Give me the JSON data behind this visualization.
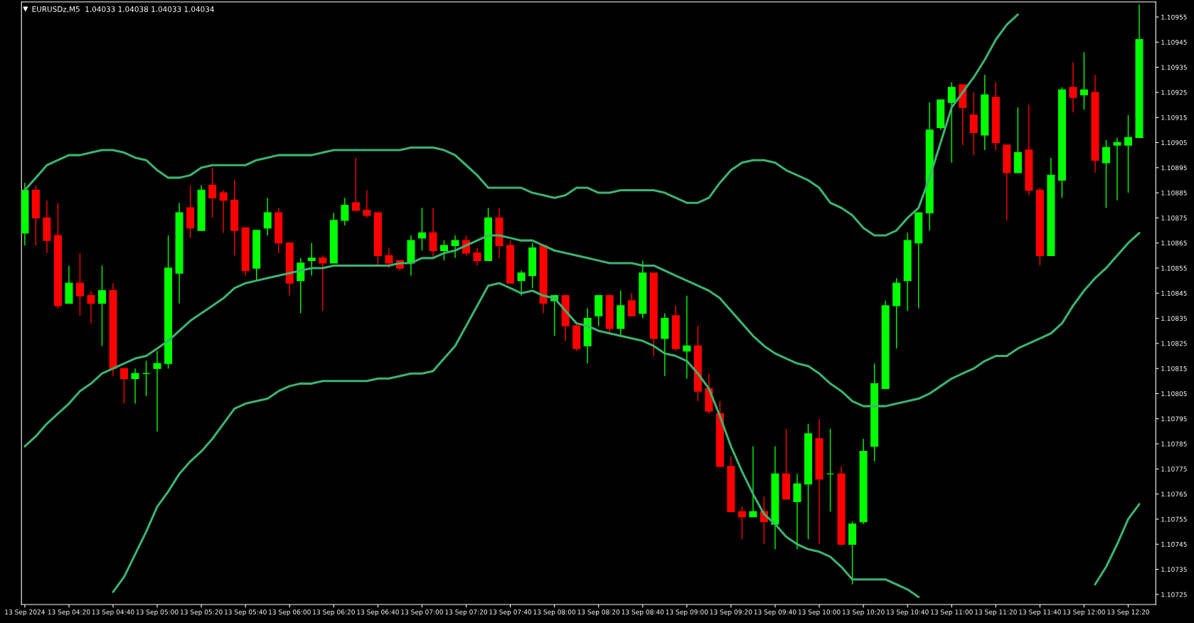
{
  "chart_data": {
    "type": "candlestick",
    "title": "EURUSDz,M5  1.04033 1.04038 1.04033 1.04034",
    "categories": [
      "13 Sep 2024",
      null,
      null,
      null,
      "13 Sep 04:20",
      null,
      null,
      null,
      "13 Sep 04:40",
      null,
      null,
      null,
      "13 Sep 05:00",
      null,
      null,
      null,
      "13 Sep 05:20",
      null,
      null,
      null,
      "13 Sep 05:40",
      null,
      null,
      null,
      "13 Sep 06:00",
      null,
      null,
      null,
      "13 Sep 06:20",
      null,
      null,
      null,
      "13 Sep 06:40",
      null,
      null,
      null,
      "13 Sep 07:00",
      null,
      null,
      null,
      "13 Sep 07:20",
      null,
      null,
      null,
      "13 Sep 07:40",
      null,
      null,
      null,
      "13 Sep 08:00",
      null,
      null,
      null,
      "13 Sep 08:20",
      null,
      null,
      null,
      "13 Sep 08:40",
      null,
      null,
      null,
      "13 Sep 09:00",
      null,
      null,
      null,
      "13 Sep 09:20",
      null,
      null,
      null,
      "13 Sep 09:40",
      null,
      null,
      null,
      "13 Sep 10:00",
      null,
      null,
      null,
      "13 Sep 10:20",
      null,
      null,
      null,
      "13 Sep 10:40",
      null,
      null,
      null,
      "13 Sep 11:00",
      null,
      null,
      null,
      "13 Sep 11:20",
      null,
      null,
      null,
      "13 Sep 11:40",
      null,
      null,
      null,
      "13 Sep 12:00",
      null,
      null,
      null,
      "13 Sep 12:20",
      null
    ],
    "ohlc": [
      [
        1.10869,
        1.10889,
        1.10864,
        1.10886
      ],
      [
        1.10886,
        1.10888,
        1.10864,
        1.10875
      ],
      [
        1.10875,
        1.10882,
        1.10861,
        1.10866
      ],
      [
        1.10868,
        1.10881,
        1.10839,
        1.1084
      ],
      [
        1.10841,
        1.10856,
        1.10841,
        1.10849
      ],
      [
        1.10849,
        1.10861,
        1.10836,
        1.10844
      ],
      [
        1.10844,
        1.10846,
        1.10833,
        1.10841
      ],
      [
        1.10841,
        1.10856,
        1.10824,
        1.10846
      ],
      [
        1.10846,
        1.10849,
        1.10812,
        1.10815
      ],
      [
        1.10815,
        1.10815,
        1.10801,
        1.10811
      ],
      [
        1.10811,
        1.10815,
        1.10801,
        1.10813
      ],
      [
        1.10813,
        1.10818,
        1.10804,
        1.10813
      ],
      [
        1.10815,
        1.10822,
        1.1079,
        1.10817
      ],
      [
        1.10817,
        1.10868,
        1.10815,
        1.10855
      ],
      [
        1.10853,
        1.10881,
        1.10841,
        1.10877
      ],
      [
        1.10879,
        1.10888,
        1.10867,
        1.10871
      ],
      [
        1.1087,
        1.10888,
        1.1087,
        1.10886
      ],
      [
        1.10888,
        1.10895,
        1.10875,
        1.10883
      ],
      [
        1.10885,
        1.10886,
        1.10869,
        1.10882
      ],
      [
        1.10882,
        1.1089,
        1.1086,
        1.1087
      ],
      [
        1.10871,
        1.10871,
        1.10852,
        1.10854
      ],
      [
        1.10855,
        1.1087,
        1.1085,
        1.1087
      ],
      [
        1.10871,
        1.10883,
        1.10868,
        1.10877
      ],
      [
        1.10877,
        1.10879,
        1.10861,
        1.10865
      ],
      [
        1.10865,
        1.10865,
        1.10844,
        1.10849
      ],
      [
        1.1085,
        1.10859,
        1.10837,
        1.10857
      ],
      [
        1.10858,
        1.10865,
        1.10852,
        1.10859
      ],
      [
        1.10859,
        1.1086,
        1.10838,
        1.10857
      ],
      [
        1.10857,
        1.10877,
        1.10857,
        1.10874
      ],
      [
        1.10874,
        1.10883,
        1.10872,
        1.1088
      ],
      [
        1.10881,
        1.10899,
        1.10878,
        1.10878
      ],
      [
        1.10878,
        1.10886,
        1.10875,
        1.10876
      ],
      [
        1.10877,
        1.10877,
        1.10856,
        1.1086
      ],
      [
        1.1086,
        1.10863,
        1.10855,
        1.10857
      ],
      [
        1.10858,
        1.10858,
        1.10854,
        1.10855
      ],
      [
        1.10857,
        1.10868,
        1.10852,
        1.10866
      ],
      [
        1.10867,
        1.10879,
        1.10862,
        1.10869
      ],
      [
        1.10869,
        1.10879,
        1.10859,
        1.10862
      ],
      [
        1.10862,
        1.10866,
        1.10858,
        1.10864
      ],
      [
        1.10864,
        1.10868,
        1.10859,
        1.10866
      ],
      [
        1.10866,
        1.10868,
        1.1086,
        1.10861
      ],
      [
        1.10861,
        1.10863,
        1.10856,
        1.10858
      ],
      [
        1.10858,
        1.10879,
        1.10858,
        1.10875
      ],
      [
        1.10875,
        1.10879,
        1.10859,
        1.10864
      ],
      [
        1.10864,
        1.10866,
        1.10849,
        1.10849
      ],
      [
        1.1085,
        1.10854,
        1.10844,
        1.10853
      ],
      [
        1.10852,
        1.10865,
        1.10847,
        1.10863
      ],
      [
        1.10864,
        1.10864,
        1.10837,
        1.10841
      ],
      [
        1.10842,
        1.10844,
        1.10828,
        1.10844
      ],
      [
        1.10844,
        1.10844,
        1.10826,
        1.10832
      ],
      [
        1.10832,
        1.10833,
        1.10822,
        1.10823
      ],
      [
        1.10824,
        1.10839,
        1.10817,
        1.10835
      ],
      [
        1.10836,
        1.10844,
        1.10832,
        1.10844
      ],
      [
        1.10844,
        1.10844,
        1.10829,
        1.10831
      ],
      [
        1.10831,
        1.10846,
        1.10828,
        1.1084
      ],
      [
        1.10842,
        1.10845,
        1.10836,
        1.10836
      ],
      [
        1.10837,
        1.10858,
        1.10835,
        1.10853
      ],
      [
        1.10853,
        1.10853,
        1.1082,
        1.10827
      ],
      [
        1.10827,
        1.10837,
        1.10812,
        1.10835
      ],
      [
        1.10836,
        1.1084,
        1.10822,
        1.10823
      ],
      [
        1.10822,
        1.10844,
        1.10811,
        1.10824
      ],
      [
        1.10824,
        1.10832,
        1.10802,
        1.10806
      ],
      [
        1.10807,
        1.10813,
        1.10797,
        1.10798
      ],
      [
        1.10797,
        1.10802,
        1.10776,
        1.10776
      ],
      [
        1.10776,
        1.1078,
        1.10758,
        1.10758
      ],
      [
        1.10758,
        1.1076,
        1.10747,
        1.10756
      ],
      [
        1.10756,
        1.10784,
        1.10756,
        1.10758
      ],
      [
        1.10758,
        1.10764,
        1.10745,
        1.10754
      ],
      [
        1.10753,
        1.10784,
        1.10743,
        1.10773
      ],
      [
        1.10773,
        1.10791,
        1.10763,
        1.10763
      ],
      [
        1.10762,
        1.10773,
        1.10743,
        1.10769
      ],
      [
        1.10769,
        1.10793,
        1.10747,
        1.10789
      ],
      [
        1.10787,
        1.10795,
        1.10745,
        1.10771
      ],
      [
        1.10773,
        1.10791,
        1.10758,
        1.10773
      ],
      [
        1.10773,
        1.10776,
        1.10745,
        1.10745
      ],
      [
        1.10745,
        1.10754,
        1.10729,
        1.10753
      ],
      [
        1.10754,
        1.10787,
        1.10753,
        1.10782
      ],
      [
        1.10784,
        1.10817,
        1.10778,
        1.10809
      ],
      [
        1.10807,
        1.10842,
        1.10807,
        1.1084
      ],
      [
        1.1084,
        1.10851,
        1.10823,
        1.10849
      ],
      [
        1.1085,
        1.10869,
        1.10838,
        1.10866
      ],
      [
        1.10865,
        1.10877,
        1.10839,
        1.10877
      ],
      [
        1.10877,
        1.10921,
        1.1087,
        1.1091
      ],
      [
        1.10911,
        1.10922,
        1.1091,
        1.10922
      ],
      [
        1.10921,
        1.10929,
        1.10897,
        1.10927
      ],
      [
        1.10928,
        1.10928,
        1.10904,
        1.10919
      ],
      [
        1.10916,
        1.10925,
        1.109,
        1.10909
      ],
      [
        1.10908,
        1.10932,
        1.10902,
        1.10924
      ],
      [
        1.10923,
        1.10929,
        1.10902,
        1.10905
      ],
      [
        1.10904,
        1.10904,
        1.10874,
        1.10893
      ],
      [
        1.10893,
        1.10919,
        1.10893,
        1.10901
      ],
      [
        1.10902,
        1.1092,
        1.10884,
        1.10886
      ],
      [
        1.10886,
        1.10887,
        1.10856,
        1.1086
      ],
      [
        1.1086,
        1.10899,
        1.1086,
        1.10892
      ],
      [
        1.1089,
        1.10927,
        1.10883,
        1.10926
      ],
      [
        1.10927,
        1.10937,
        1.10917,
        1.10923
      ],
      [
        1.10924,
        1.10941,
        1.10918,
        1.10926
      ],
      [
        1.10925,
        1.10932,
        1.10893,
        1.10898
      ],
      [
        1.10897,
        1.10906,
        1.10879,
        1.10903
      ],
      [
        1.10904,
        1.10907,
        1.10882,
        1.10905
      ],
      [
        1.10904,
        1.10916,
        1.10885,
        1.10907
      ],
      [
        1.10907,
        1.1096,
        1.10907,
        1.10946
      ]
    ],
    "colors": [
      "#00ff00",
      "#ff0000",
      "#ff0000",
      "#ff0000",
      "#00ff00",
      "#ff0000",
      "#ff0000",
      "#00ff00",
      "#ff0000",
      "#ff0000",
      "#00ff00",
      "#00ff00",
      "#00ff00",
      "#00ff00",
      "#00ff00",
      "#ff0000",
      "#00ff00",
      "#ff0000",
      "#ff0000",
      "#ff0000",
      "#ff0000",
      "#00ff00",
      "#00ff00",
      "#ff0000",
      "#ff0000",
      "#00ff00",
      "#00ff00",
      "#ff0000",
      "#00ff00",
      "#00ff00",
      "#ff0000",
      "#ff0000",
      "#ff0000",
      "#ff0000",
      "#ff0000",
      "#00ff00",
      "#00ff00",
      "#ff0000",
      "#00ff00",
      "#00ff00",
      "#ff0000",
      "#ff0000",
      "#00ff00",
      "#ff0000",
      "#ff0000",
      "#00ff00",
      "#00ff00",
      "#ff0000",
      "#00ff00",
      "#ff0000",
      "#ff0000",
      "#00ff00",
      "#00ff00",
      "#ff0000",
      "#00ff00",
      "#ff0000",
      "#00ff00",
      "#ff0000",
      "#00ff00",
      "#ff0000",
      "#00ff00",
      "#ff0000",
      "#ff0000",
      "#ff0000",
      "#ff0000",
      "#ff0000",
      "#00ff00",
      "#ff0000",
      "#00ff00",
      "#ff0000",
      "#00ff00",
      "#00ff00",
      "#ff0000",
      "#00ff00",
      "#ff0000",
      "#00ff00",
      "#00ff00",
      "#00ff00",
      "#00ff00",
      "#00ff00",
      "#00ff00",
      "#00ff00",
      "#00ff00",
      "#00ff00",
      "#00ff00",
      "#ff0000",
      "#ff0000",
      "#00ff00",
      "#ff0000",
      "#ff0000",
      "#00ff00",
      "#ff0000",
      "#ff0000",
      "#00ff00",
      "#00ff00",
      "#ff0000",
      "#00ff00",
      "#ff0000",
      "#00ff00",
      "#00ff00",
      "#00ff00",
      "#00ff00"
    ],
    "series": [
      {
        "type": "line",
        "color": "#3cb371",
        "values": [
          1.10886,
          1.10891,
          1.10896,
          1.10898,
          1.109,
          1.109,
          1.10901,
          1.10902,
          1.10902,
          1.10901,
          1.10899,
          1.10898,
          1.10894,
          1.10891,
          1.10891,
          1.10892,
          1.10895,
          1.10896,
          1.10896,
          1.10896,
          1.10896,
          1.10898,
          1.10899,
          1.109,
          1.109,
          1.109,
          1.109,
          1.10901,
          1.10902,
          1.10902,
          1.10902,
          1.10902,
          1.10902,
          1.10902,
          1.10902,
          1.10903,
          1.10903,
          1.10903,
          1.10902,
          1.109,
          1.10896,
          1.10892,
          1.10887,
          1.10887,
          1.10887,
          1.10887,
          1.10885,
          1.10884,
          1.10883,
          1.10884,
          1.10887,
          1.10887,
          1.10885,
          1.10885,
          1.10886,
          1.10886,
          1.10886,
          1.10886,
          1.10885,
          1.10883,
          1.10881,
          1.10881,
          1.10883,
          1.10889,
          1.10894,
          1.10897,
          1.10898,
          1.10898,
          1.10897,
          1.10894,
          1.10892,
          1.1089,
          1.10887,
          1.10881,
          1.10879,
          1.10876,
          1.10871,
          1.10868,
          1.10868,
          1.1087,
          1.10875,
          1.10879,
          1.10891,
          1.10905,
          1.10919,
          1.10925,
          1.10931,
          1.10938,
          1.10946,
          1.10952,
          1.10956,
          null,
          null,
          null,
          null,
          null,
          null,
          null,
          null,
          null,
          null,
          null
        ]
      },
      {
        "type": "line",
        "color": "#3cb371",
        "values": [
          1.10784,
          1.10788,
          1.10793,
          1.10797,
          1.10801,
          1.10806,
          1.10809,
          1.10813,
          1.10815,
          1.10817,
          1.10819,
          1.1082,
          1.10823,
          1.10826,
          1.1083,
          1.10834,
          1.10837,
          1.1084,
          1.10843,
          1.10847,
          1.10849,
          1.1085,
          1.10851,
          1.10852,
          1.10853,
          1.10854,
          1.10855,
          1.10855,
          1.10856,
          1.10856,
          1.10856,
          1.10856,
          1.10856,
          1.10856,
          1.10857,
          1.10857,
          1.10859,
          1.10859,
          1.10861,
          1.10862,
          1.10864,
          1.10866,
          1.10868,
          1.10868,
          1.10867,
          1.10866,
          1.10866,
          1.10864,
          1.10862,
          1.10861,
          1.1086,
          1.10859,
          1.10858,
          1.10857,
          1.10857,
          1.10857,
          1.10856,
          1.10856,
          1.10854,
          1.10852,
          1.1085,
          1.10848,
          1.10846,
          1.10843,
          1.10838,
          1.10833,
          1.10828,
          1.10824,
          1.10821,
          1.10819,
          1.10817,
          1.10816,
          1.10813,
          1.10809,
          1.10806,
          1.10802,
          1.108,
          1.108,
          1.108,
          1.10801,
          1.10802,
          1.10803,
          1.10805,
          1.10808,
          1.10811,
          1.10813,
          1.10815,
          1.10818,
          1.1082,
          1.1082,
          1.10823,
          1.10825,
          1.10827,
          1.10829,
          1.10833,
          1.1084,
          1.10846,
          1.10851,
          1.10855,
          1.1086,
          1.10865,
          1.10869
        ]
      },
      {
        "type": "line",
        "color": "#3cb371",
        "values": [
          null,
          null,
          null,
          null,
          null,
          null,
          null,
          null,
          1.10726,
          1.10732,
          1.10741,
          1.1075,
          1.1076,
          1.10766,
          1.10773,
          1.10778,
          1.10782,
          1.10787,
          1.10793,
          1.10799,
          1.10801,
          1.10802,
          1.10803,
          1.10806,
          1.10808,
          1.10809,
          1.10809,
          1.1081,
          1.1081,
          1.1081,
          1.1081,
          1.1081,
          1.10811,
          1.10811,
          1.10812,
          1.10813,
          1.10813,
          1.10814,
          1.10819,
          1.10824,
          1.10832,
          1.1084,
          1.10848,
          1.10849,
          1.10847,
          1.10845,
          1.10846,
          1.10844,
          1.10843,
          1.10838,
          1.10833,
          1.10832,
          1.1083,
          1.10829,
          1.10828,
          1.10827,
          1.10826,
          1.10824,
          1.10821,
          1.1082,
          1.10818,
          1.10813,
          1.10807,
          1.10796,
          1.10784,
          1.10774,
          1.10765,
          1.10757,
          1.10753,
          1.10748,
          1.10745,
          1.10743,
          1.10742,
          1.1074,
          1.10736,
          1.10731,
          1.10731,
          1.10731,
          1.10731,
          1.10729,
          1.10727,
          1.10724,
          null,
          null,
          null,
          null,
          null,
          null,
          null,
          null,
          null,
          null,
          null,
          null,
          null,
          null,
          null,
          1.10729,
          1.10736,
          1.10745,
          1.10755,
          1.10761
        ]
      }
    ],
    "ylim": [
      1.10721,
      1.10961
    ],
    "yticks": [
      1.10725,
      1.10735,
      1.10745,
      1.10755,
      1.10765,
      1.10775,
      1.10785,
      1.10795,
      1.10805,
      1.10815,
      1.10825,
      1.10835,
      1.10845,
      1.10855,
      1.10865,
      1.10875,
      1.10885,
      1.10895,
      1.10905,
      1.10915,
      1.10925,
      1.10935,
      1.10945,
      1.10955
    ],
    "grid": false
  }
}
